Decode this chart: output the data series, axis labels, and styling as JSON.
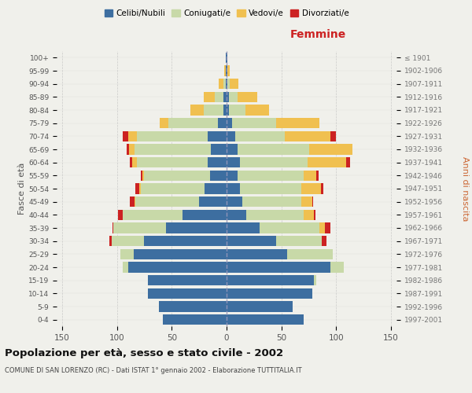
{
  "age_groups": [
    "0-4",
    "5-9",
    "10-14",
    "15-19",
    "20-24",
    "25-29",
    "30-34",
    "35-39",
    "40-44",
    "45-49",
    "50-54",
    "55-59",
    "60-64",
    "65-69",
    "70-74",
    "75-79",
    "80-84",
    "85-89",
    "90-94",
    "95-99",
    "100+"
  ],
  "birth_years": [
    "1997-2001",
    "1992-1996",
    "1987-1991",
    "1982-1986",
    "1977-1981",
    "1972-1976",
    "1967-1971",
    "1962-1966",
    "1957-1961",
    "1952-1956",
    "1947-1951",
    "1942-1946",
    "1937-1941",
    "1932-1936",
    "1927-1931",
    "1922-1926",
    "1917-1921",
    "1912-1916",
    "1907-1911",
    "1902-1906",
    "≤ 1901"
  ],
  "males": {
    "celibi": [
      58,
      62,
      72,
      72,
      90,
      85,
      75,
      55,
      40,
      25,
      20,
      15,
      17,
      14,
      17,
      8,
      3,
      3,
      1,
      1,
      1
    ],
    "coniugati": [
      0,
      0,
      0,
      0,
      5,
      12,
      30,
      48,
      55,
      58,
      58,
      60,
      65,
      70,
      65,
      45,
      18,
      8,
      2,
      0,
      0
    ],
    "vedovi": [
      0,
      0,
      0,
      0,
      0,
      0,
      0,
      0,
      0,
      1,
      2,
      2,
      4,
      5,
      8,
      8,
      12,
      10,
      4,
      1,
      0
    ],
    "divorziati": [
      0,
      0,
      0,
      0,
      0,
      0,
      2,
      1,
      4,
      4,
      3,
      1,
      2,
      2,
      5,
      0,
      0,
      0,
      0,
      0,
      0
    ]
  },
  "females": {
    "nubili": [
      70,
      60,
      78,
      80,
      95,
      55,
      45,
      30,
      18,
      14,
      12,
      10,
      12,
      10,
      8,
      5,
      2,
      2,
      1,
      1,
      1
    ],
    "coniugate": [
      0,
      0,
      0,
      2,
      12,
      42,
      42,
      55,
      52,
      54,
      56,
      60,
      62,
      65,
      45,
      40,
      15,
      8,
      2,
      0,
      0
    ],
    "vedove": [
      0,
      0,
      0,
      0,
      0,
      0,
      0,
      5,
      10,
      10,
      18,
      12,
      35,
      40,
      42,
      40,
      22,
      18,
      8,
      2,
      0
    ],
    "divorziate": [
      0,
      0,
      0,
      0,
      0,
      0,
      4,
      5,
      1,
      1,
      2,
      2,
      4,
      0,
      5,
      0,
      0,
      0,
      0,
      0,
      0
    ]
  },
  "colors": {
    "celibi": "#3d6ea0",
    "coniugati": "#c8d9a8",
    "vedovi": "#f0c050",
    "divorziati": "#cc2222"
  },
  "xlim": 155,
  "title": "Popolazione per età, sesso e stato civile - 2002",
  "subtitle": "COMUNE DI SAN LORENZO (RC) - Dati ISTAT 1° gennaio 2002 - Elaborazione TUTTITALIA.IT",
  "ylabel_left": "Fasce di età",
  "ylabel_right": "Anni di nascita",
  "xlabel_right": "Femmine",
  "legend_labels": [
    "Celibi/Nubili",
    "Coniugati/e",
    "Vedovi/e",
    "Divorziati/e"
  ],
  "bg_color": "#f0f0eb"
}
